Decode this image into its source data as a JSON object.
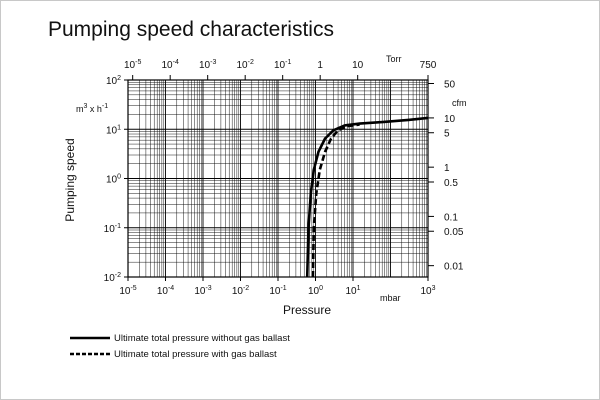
{
  "title": "Pumping speed characteristics",
  "chart_data": {
    "type": "line",
    "x_scale": "log",
    "y_scale": "log",
    "xlim": [
      1e-05,
      1000
    ],
    "ylim": [
      0.01,
      100
    ],
    "xlabel": "Pressure",
    "xunit": "mbar",
    "ylabel": "Pumping speed",
    "yunit_left": "m3 x h-1",
    "top_axis": {
      "unit": "Torr",
      "ticks": [
        {
          "label": "10",
          "exp": "-5",
          "value_torr": 1e-05
        },
        {
          "label": "10",
          "exp": "-4",
          "value_torr": 0.0001
        },
        {
          "label": "10",
          "exp": "-3",
          "value_torr": 0.001
        },
        {
          "label": "10",
          "exp": "-2",
          "value_torr": 0.01
        },
        {
          "label": "10",
          "exp": "-1",
          "value_torr": 0.1
        },
        {
          "label": "1",
          "exp": "",
          "value_torr": 1
        },
        {
          "label": "10",
          "exp": "",
          "value_torr": 10
        },
        {
          "label": "750",
          "exp": "",
          "value_torr": 750
        }
      ]
    },
    "right_axis": {
      "unit": "cfm",
      "ticks": [
        {
          "label": "50",
          "value_cfm": 50
        },
        {
          "label": "10",
          "value_cfm": 10
        },
        {
          "label": "5",
          "value_cfm": 5
        },
        {
          "label": "1",
          "value_cfm": 1
        },
        {
          "label": "0.5",
          "value_cfm": 0.5
        },
        {
          "label": "0.1",
          "value_cfm": 0.1
        },
        {
          "label": "0.05",
          "value_cfm": 0.05
        },
        {
          "label": "0.01",
          "value_cfm": 0.01
        }
      ]
    },
    "x_ticks": [
      {
        "label": "10",
        "exp": "-5",
        "value": 1e-05
      },
      {
        "label": "10",
        "exp": "-4",
        "value": 0.0001
      },
      {
        "label": "10",
        "exp": "-3",
        "value": 0.001
      },
      {
        "label": "10",
        "exp": "-2",
        "value": 0.01
      },
      {
        "label": "10",
        "exp": "-1",
        "value": 0.1
      },
      {
        "label": "10",
        "exp": "0",
        "value": 1
      },
      {
        "label": "10",
        "exp": "1",
        "value": 10
      },
      {
        "label": "10",
        "exp": "3",
        "value": 1000
      }
    ],
    "y_ticks": [
      {
        "label": "10",
        "exp": "2",
        "value": 100
      },
      {
        "label": "10",
        "exp": "1",
        "value": 10
      },
      {
        "label": "10",
        "exp": "0",
        "value": 1
      },
      {
        "label": "10",
        "exp": "-1",
        "value": 0.1
      },
      {
        "label": "10",
        "exp": "-2",
        "value": 0.01
      }
    ],
    "series": [
      {
        "name": "Ultimate total pressure without gas ballast",
        "style": "solid",
        "points": [
          [
            0.6,
            0.01
          ],
          [
            0.65,
            0.1
          ],
          [
            0.75,
            0.5
          ],
          [
            0.9,
            1.5
          ],
          [
            1.2,
            3.5
          ],
          [
            1.8,
            6.5
          ],
          [
            3,
            9.5
          ],
          [
            6,
            12
          ],
          [
            15,
            13
          ],
          [
            60,
            14
          ],
          [
            300,
            15.5
          ],
          [
            1000,
            17
          ]
        ]
      },
      {
        "name": "Ultimate total pressure with gas ballast",
        "style": "dashed",
        "points": [
          [
            0.85,
            0.01
          ],
          [
            0.9,
            0.1
          ],
          [
            1.05,
            0.5
          ],
          [
            1.3,
            1.5
          ],
          [
            1.8,
            3.5
          ],
          [
            2.6,
            6.5
          ],
          [
            4,
            9.5
          ],
          [
            7,
            11.5
          ],
          [
            15,
            12.5
          ]
        ]
      }
    ],
    "grid": true,
    "legend": "bottom-left"
  },
  "colors": {
    "line": "#000000",
    "grid": "#000000",
    "frame": "#c8c8c8"
  }
}
